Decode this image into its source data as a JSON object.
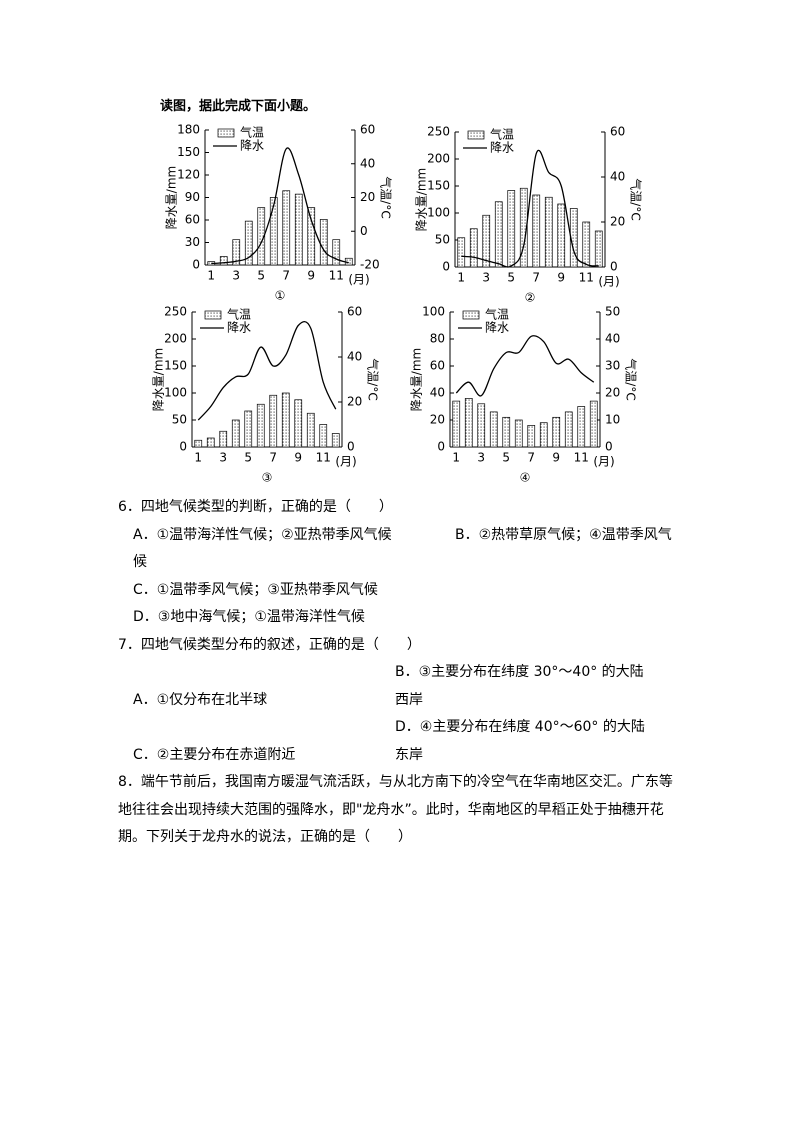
{
  "intro": "读图，据此完成下面小题。",
  "chart_data": [
    {
      "type": "combo",
      "caption": "①",
      "xlabel": "(月)",
      "ylabel": "降水量/mm",
      "y2label": "气温/°C",
      "categories": [
        "1",
        null,
        "3",
        null,
        "5",
        null,
        "7",
        null,
        "9",
        null,
        "11",
        null
      ],
      "series": [
        {
          "name": "气温",
          "kind": "bar",
          "color": "#555555",
          "axis": "y2",
          "values": [
            -18,
            -15,
            -5,
            6,
            14,
            20,
            24,
            22,
            14,
            7,
            -5,
            -16
          ]
        },
        {
          "name": "降水",
          "kind": "line",
          "color": "#000000",
          "values": [
            2,
            3,
            5,
            10,
            30,
            80,
            155,
            120,
            60,
            20,
            8,
            3
          ]
        }
      ],
      "ylim": [
        0,
        180
      ],
      "yticks": [
        0,
        30,
        60,
        90,
        120,
        150,
        180
      ],
      "y2lim": [
        -20,
        60
      ],
      "y2ticks": [
        -20,
        0,
        20,
        40,
        60
      ]
    },
    {
      "type": "combo",
      "caption": "②",
      "xlabel": "(月)",
      "ylabel": "降水量/mm",
      "y2label": "气温/°C",
      "categories": [
        "1",
        null,
        "3",
        null,
        "5",
        null,
        "7",
        null,
        "9",
        null,
        "11",
        null
      ],
      "series": [
        {
          "name": "气温",
          "kind": "bar",
          "color": "#555555",
          "axis": "y2",
          "values": [
            13,
            17,
            23,
            29,
            34,
            35,
            32,
            31,
            28,
            26,
            20,
            16
          ]
        },
        {
          "name": "降水",
          "kind": "line",
          "color": "#000000",
          "values": [
            20,
            18,
            12,
            6,
            2,
            40,
            210,
            175,
            150,
            30,
            5,
            2
          ]
        }
      ],
      "ylim": [
        0,
        250
      ],
      "yticks": [
        0,
        50,
        100,
        150,
        200,
        250
      ],
      "y2lim": [
        0,
        60
      ],
      "y2ticks": [
        0,
        20,
        40,
        60
      ]
    },
    {
      "type": "combo",
      "caption": "③",
      "xlabel": "(月)",
      "ylabel": "降水量/mm",
      "y2label": "气温/°C",
      "categories": [
        "1",
        null,
        "3",
        null,
        "5",
        null,
        "7",
        null,
        "9",
        null,
        "11",
        null
      ],
      "series": [
        {
          "name": "气温",
          "kind": "bar",
          "color": "#555555",
          "axis": "y2",
          "values": [
            3,
            4,
            7,
            12,
            16,
            19,
            23,
            24,
            21,
            15,
            10,
            6
          ]
        },
        {
          "name": "降水",
          "kind": "line",
          "color": "#000000",
          "values": [
            50,
            75,
            110,
            130,
            135,
            185,
            150,
            170,
            225,
            220,
            120,
            70
          ]
        }
      ],
      "ylim": [
        0,
        250
      ],
      "yticks": [
        0,
        50,
        100,
        150,
        200,
        250
      ],
      "y2lim": [
        0,
        60
      ],
      "y2ticks": [
        0,
        20,
        40,
        60
      ]
    },
    {
      "type": "combo",
      "caption": "④",
      "xlabel": "(月)",
      "ylabel": "降水量/mm",
      "y2label": "气温/°C",
      "categories": [
        "1",
        null,
        "3",
        null,
        "5",
        null,
        "7",
        null,
        "9",
        null,
        "11",
        null
      ],
      "series": [
        {
          "name": "气温",
          "kind": "bar",
          "color": "#555555",
          "axis": "y2",
          "values": [
            17,
            18,
            16,
            13,
            11,
            10,
            8,
            9,
            11,
            13,
            15,
            17
          ]
        },
        {
          "name": "降水",
          "kind": "line",
          "color": "#000000",
          "values": [
            40,
            48,
            38,
            58,
            70,
            70,
            82,
            78,
            62,
            65,
            55,
            48
          ]
        }
      ],
      "ylim": [
        0,
        100
      ],
      "yticks": [
        0,
        20,
        40,
        60,
        80,
        100
      ],
      "y2lim": [
        0,
        50
      ],
      "y2ticks": [
        0,
        10,
        20,
        30,
        40,
        50
      ]
    }
  ],
  "questions": [
    {
      "stem": "6．四地气候类型的判断，正确的是（　　）",
      "options": [
        "A．①温带海洋性气候；②亚热带季风气候",
        "B．②热带草原气候；④温带季风气候",
        "C．①温带季风气候；③亚热带季风气候",
        "D．③地中海气候；①温带海洋性气候"
      ]
    },
    {
      "stem": "7．四地气候类型分布的叙述，正确的是（　　）",
      "options": [
        "A．①仅分布在北半球",
        "B．③主要分布在纬度 30°～40° 的大陆西岸",
        "C．②主要分布在赤道附近",
        "D．④主要分布在纬度 40°～60° 的大陆东岸"
      ]
    },
    {
      "stem": "8．端午节前后，我国南方暖湿气流活跃，与从北方南下的冷空气在华南地区交汇。广东等地往往会出现持续大范围的强降水，即\"龙舟水”。此时，华南地区的早稻正处于抽穗开花期。下列关于龙舟水的说法，正确的是（　　）"
    }
  ]
}
